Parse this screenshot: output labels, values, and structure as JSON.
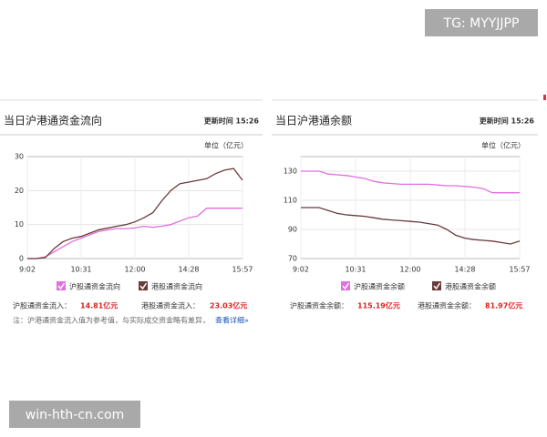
{
  "watermarks": [
    "TG: MYYJJPP",
    "win-hth-cn.com"
  ],
  "chart_data": [
    {
      "type": "line",
      "title": "当日沪港通资金流向",
      "update_time": "更新时间 15:26",
      "unit": "单位（亿元）",
      "categories": [
        "9:02",
        null,
        null,
        null,
        null,
        null,
        "10:31",
        null,
        null,
        null,
        null,
        null,
        "12:00",
        null,
        null,
        null,
        null,
        null,
        "14:28",
        null,
        null,
        null,
        null,
        null,
        "15:57"
      ],
      "series": [
        {
          "name": "沪股通资金流向",
          "color": "#e070e0",
          "values": [
            0,
            0,
            0.5,
            2,
            3.5,
            5,
            6,
            7,
            8,
            8.5,
            8.8,
            8.8,
            9,
            9.5,
            9.2,
            9.5,
            10,
            11,
            12,
            12.5,
            14.8,
            14.8,
            14.8,
            14.8,
            14.81
          ]
        },
        {
          "name": "港股通资金流向",
          "color": "#6b3a3a",
          "values": [
            0,
            0,
            0.3,
            3,
            5,
            6,
            6.5,
            7.5,
            8.5,
            9,
            9.5,
            10,
            10.8,
            12,
            13.5,
            17,
            20,
            22,
            22.5,
            23,
            23.5,
            25,
            26,
            26.5,
            23.03
          ]
        }
      ],
      "ylim": [
        0,
        30
      ],
      "yticks": [
        0,
        10,
        20,
        30
      ],
      "grid": true,
      "summary": [
        {
          "label": "沪股通资金流入：",
          "value": "14.81亿元"
        },
        {
          "label": "港股通资金流入：",
          "value": "23.03亿元"
        }
      ],
      "note": {
        "text": "注：沪港通资金流入值为参考值，与实际成交资金略有差异，",
        "link": "查看详细»"
      }
    },
    {
      "type": "line",
      "title": "当日沪港通余额",
      "update_time": "更新时间 15:26",
      "unit": "单位（亿元）",
      "categories": [
        "9:02",
        null,
        null,
        null,
        null,
        null,
        "10:31",
        null,
        null,
        null,
        null,
        null,
        "12:00",
        null,
        null,
        null,
        null,
        null,
        "14:28",
        null,
        null,
        null,
        null,
        null,
        "15:57"
      ],
      "series": [
        {
          "name": "沪股通资金余额",
          "color": "#e070e0",
          "values": [
            130,
            130,
            130,
            128,
            127.5,
            127,
            126,
            125,
            123,
            122,
            121.5,
            121,
            121,
            121,
            121,
            120.5,
            120,
            120,
            119.5,
            119,
            118,
            115.2,
            115.2,
            115.2,
            115.19
          ]
        },
        {
          "name": "港股通资金余额",
          "color": "#6b3a3a",
          "values": [
            105,
            105,
            105,
            103,
            101,
            100,
            99.5,
            99,
            98,
            97,
            96.5,
            96,
            95.5,
            95,
            94,
            93,
            90,
            86,
            84,
            83,
            82.5,
            82,
            81,
            80,
            81.97
          ]
        }
      ],
      "ylim": [
        70,
        140
      ],
      "yticks": [
        70,
        90,
        110,
        130
      ],
      "grid": true,
      "summary": [
        {
          "label": "沪股通资金余额：",
          "value": "115.19亿元"
        },
        {
          "label": "港股通资金余额：",
          "value": "81.97亿元"
        }
      ]
    }
  ]
}
